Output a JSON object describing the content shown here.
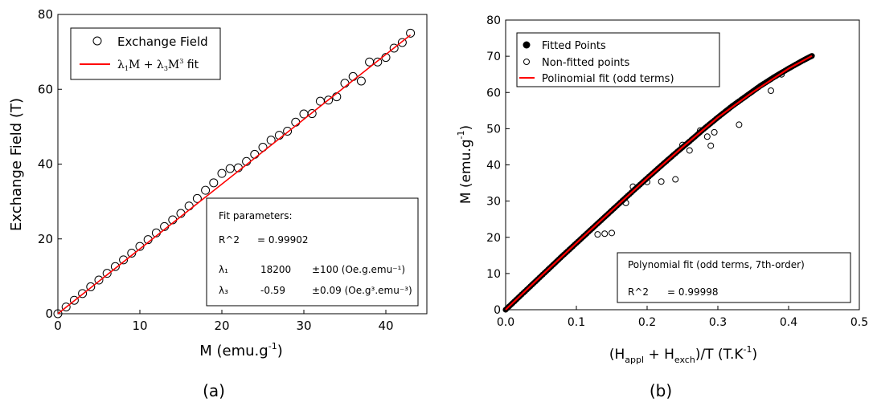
{
  "chart_data": [
    {
      "type": "scatter",
      "panel_label": "(a)",
      "xlabel": "M (emu.g",
      "xlabel_sup": "-1",
      "xlabel_tail": ")",
      "ylabel": "Exchange Field (T)",
      "xlim": [
        0,
        45
      ],
      "ylim": [
        0,
        80
      ],
      "xticks": [
        0,
        10,
        20,
        30,
        40
      ],
      "yticks": [
        0,
        20,
        40,
        60,
        80
      ],
      "legend": {
        "placement": "top-left",
        "entries": [
          {
            "marker": "open-circle",
            "label": "Exchange Field"
          },
          {
            "marker": "red-line",
            "label": "λ₁M + λ₃M³ fit"
          }
        ]
      },
      "annotation": {
        "placement": "bottom-right",
        "title": "Fit parameters:",
        "lines": [
          {
            "label": "R^2",
            "value": "=  0.99902",
            "err": ""
          },
          {
            "label": "λ₁",
            "value": "18200",
            "err": "±100 (Oe.g.emu⁻¹)"
          },
          {
            "label": "λ₃",
            "value": "-0.59",
            "err": "±0.09 (Oe.g³.emu⁻³)"
          }
        ]
      },
      "series": [
        {
          "style": "open-circle",
          "x": [
            0,
            1,
            2,
            3,
            4,
            5,
            6,
            7,
            8,
            9,
            10,
            11,
            12,
            13,
            14,
            15,
            16,
            17,
            18,
            19,
            20,
            21,
            22,
            23,
            24,
            25,
            26,
            27,
            28,
            29,
            30,
            31,
            32,
            33,
            34,
            35,
            36,
            37,
            38,
            39,
            40,
            41,
            42,
            43
          ],
          "y": [
            0,
            1.8,
            3.6,
            5.4,
            7.2,
            9.0,
            10.8,
            12.6,
            14.4,
            16.2,
            18.0,
            19.8,
            21.6,
            23.3,
            25.1,
            26.8,
            28.8,
            30.8,
            33.0,
            35.0,
            37.5,
            38.8,
            39.0,
            40.7,
            42.6,
            44.5,
            46.4,
            47.7,
            48.8,
            51.2,
            53.4,
            53.5,
            56.8,
            57.1,
            58.0,
            61.6,
            63.4,
            62.2,
            67.3,
            67.3,
            68.5,
            71.0,
            72.5,
            75.0
          ]
        },
        {
          "style": "red-line",
          "x": [
            0,
            43
          ],
          "y": [
            0,
            74.5
          ]
        }
      ]
    },
    {
      "type": "scatter",
      "panel_label": "(b)",
      "xlabel": "(H",
      "xlabel_sub1": "appl",
      "xlabel_mid": " + H",
      "xlabel_sub2": "exch",
      "xlabel_tail": ")/T (T.K",
      "xlabel_sup": "-1",
      "xlabel_end": ")",
      "ylabel": "M (emu.g",
      "ylabel_sup": "-1",
      "ylabel_tail": ")",
      "xlim": [
        0.0,
        0.5
      ],
      "ylim": [
        0,
        80
      ],
      "xticks": [
        0.0,
        0.1,
        0.2,
        0.3,
        0.4,
        0.5
      ],
      "yticks": [
        0,
        10,
        20,
        30,
        40,
        50,
        60,
        70,
        80
      ],
      "legend": {
        "placement": "top-left",
        "entries": [
          {
            "marker": "filled-circle",
            "label": "Fitted Points"
          },
          {
            "marker": "open-circle-small",
            "label": "Non-fitted points"
          },
          {
            "marker": "red-line",
            "label": "Polinomial fit (odd terms)"
          }
        ]
      },
      "annotation": {
        "placement": "bottom-right",
        "title": "Polynomial fit (odd terms, 7th-order)",
        "lines": [
          {
            "label": "R^2",
            "value": "=  0.99998",
            "err": ""
          }
        ]
      },
      "series": [
        {
          "style": "filled-circle",
          "x": [
            0.0,
            0.02,
            0.04,
            0.06,
            0.08,
            0.1,
            0.12,
            0.14,
            0.16,
            0.18,
            0.2,
            0.22,
            0.24,
            0.26,
            0.28,
            0.3,
            0.32,
            0.34,
            0.36,
            0.38,
            0.4,
            0.42,
            0.433
          ],
          "y": [
            0.0,
            3.7,
            7.4,
            11.1,
            14.8,
            18.4,
            22.0,
            25.6,
            29.2,
            32.8,
            36.3,
            39.8,
            43.2,
            46.5,
            49.9,
            53.1,
            56.2,
            59.0,
            61.8,
            64.3,
            66.6,
            68.8,
            70.1
          ]
        },
        {
          "style": "open-circle-small",
          "x": [
            0.13,
            0.14,
            0.15,
            0.17,
            0.18,
            0.2,
            0.22,
            0.24,
            0.25,
            0.26,
            0.275,
            0.285,
            0.29,
            0.295,
            0.33,
            0.375,
            0.39
          ],
          "y": [
            20.8,
            21.0,
            21.2,
            29.5,
            34.0,
            35.3,
            35.4,
            36.0,
            45.5,
            44.0,
            49.5,
            47.8,
            45.3,
            49.0,
            51.1,
            60.5,
            65.0
          ]
        },
        {
          "style": "red-line",
          "x": [
            0.0,
            0.05,
            0.1,
            0.15,
            0.2,
            0.25,
            0.3,
            0.35,
            0.4,
            0.433
          ],
          "y": [
            0.0,
            9.3,
            18.4,
            27.4,
            36.3,
            44.9,
            53.1,
            60.2,
            66.6,
            70.1
          ]
        }
      ]
    }
  ]
}
